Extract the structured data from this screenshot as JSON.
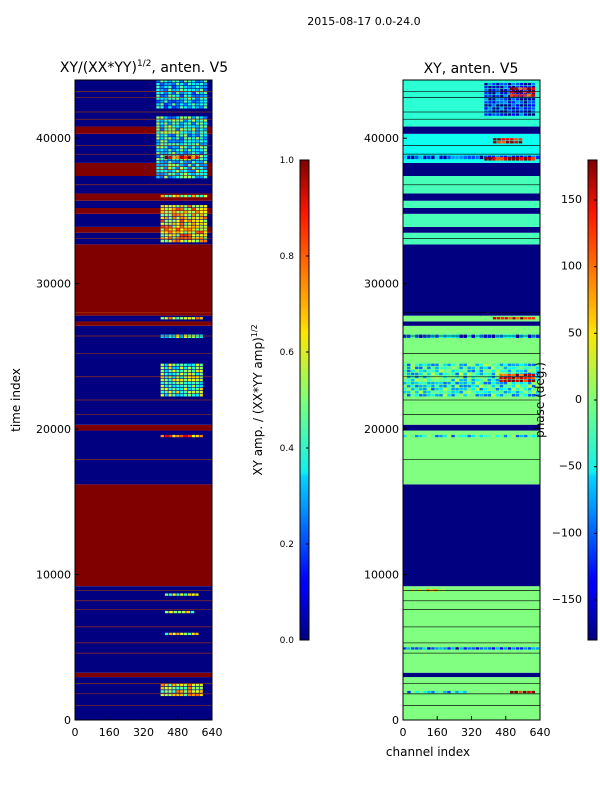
{
  "figure_title": "2015-08-17 0.0-24.0",
  "chart_data": [
    {
      "type": "heatmap",
      "title": "XY/(XX*YY)^{1/2}, anten. V5",
      "title_main": "XY/(XX*YY)",
      "title_sup": "1/2",
      "title_tail": ", anten. V5",
      "xlabel": "",
      "ylabel": "time index",
      "xlim": [
        0,
        640
      ],
      "ylim": [
        0,
        44000
      ],
      "xticks": [
        0,
        160,
        320,
        480,
        640
      ],
      "yticks": [
        0,
        10000,
        20000,
        30000,
        40000
      ],
      "colorbar": {
        "label": "XY amp. / (XX*YY amp)^{1/2}",
        "label_main": "XY amp. / (XX*YY amp)",
        "label_sup": "1/2",
        "range": [
          0.0,
          1.0
        ],
        "ticks": [
          0.0,
          0.2,
          0.4,
          0.6,
          0.8,
          1.0
        ],
        "tick_labels": [
          "0.0",
          "0.2",
          "0.4",
          "0.6",
          "0.8",
          "1.0"
        ]
      },
      "bands": [
        {
          "from": 0,
          "to": 2950,
          "value": 0.0
        },
        {
          "from": 2950,
          "to": 3250,
          "value": 1.0
        },
        {
          "from": 3250,
          "to": 9200,
          "value": 0.0
        },
        {
          "from": 9200,
          "to": 16200,
          "value": 1.0
        },
        {
          "from": 16200,
          "to": 19900,
          "value": 0.0
        },
        {
          "from": 19900,
          "to": 20300,
          "value": 1.0
        },
        {
          "from": 20300,
          "to": 27100,
          "value": 0.0
        },
        {
          "from": 27100,
          "to": 27400,
          "value": 1.0
        },
        {
          "from": 27400,
          "to": 27800,
          "value": 0.0
        },
        {
          "from": 27800,
          "to": 32700,
          "value": 1.0
        },
        {
          "from": 32700,
          "to": 33500,
          "value": 0.0
        },
        {
          "from": 33500,
          "to": 33900,
          "value": 1.0
        },
        {
          "from": 33900,
          "to": 34800,
          "value": 0.0
        },
        {
          "from": 34800,
          "to": 35200,
          "value": 1.0
        },
        {
          "from": 35200,
          "to": 35700,
          "value": 0.0
        },
        {
          "from": 35700,
          "to": 36200,
          "value": 1.0
        },
        {
          "from": 36200,
          "to": 37400,
          "value": 0.0
        },
        {
          "from": 37400,
          "to": 38300,
          "value": 1.0
        },
        {
          "from": 38300,
          "to": 40300,
          "value": 0.0
        },
        {
          "from": 40300,
          "to": 40800,
          "value": 1.0
        },
        {
          "from": 40800,
          "to": 44000,
          "value": 0.0
        }
      ],
      "lines": [
        1000,
        1800,
        2500,
        4600,
        5300,
        6400,
        7600,
        8200,
        8900,
        17900,
        21000,
        22000,
        23600,
        25200,
        26400,
        28000,
        33100,
        36800,
        38900,
        39500,
        41300,
        41800,
        42800,
        43200
      ],
      "patches": [
        {
          "x": [
            400,
            600
          ],
          "y": [
            1600,
            2500
          ],
          "value": 0.6
        },
        {
          "x": [
            420,
            580
          ],
          "y": [
            5800,
            6000
          ],
          "value": 0.55
        },
        {
          "x": [
            420,
            560
          ],
          "y": [
            7300,
            7500
          ],
          "value": 0.5
        },
        {
          "x": [
            420,
            580
          ],
          "y": [
            8500,
            8700
          ],
          "value": 0.55
        },
        {
          "x": [
            400,
            600
          ],
          "y": [
            19400,
            19600
          ],
          "value": 0.75
        },
        {
          "x": [
            400,
            600
          ],
          "y": [
            22200,
            24500
          ],
          "value": 0.5
        },
        {
          "x": [
            400,
            600
          ],
          "y": [
            26200,
            26500
          ],
          "value": 0.45
        },
        {
          "x": [
            400,
            600
          ],
          "y": [
            27500,
            27700
          ],
          "value": 0.6
        },
        {
          "x": [
            400,
            620
          ],
          "y": [
            32800,
            35400
          ],
          "value": 0.65
        },
        {
          "x": [
            400,
            620
          ],
          "y": [
            35900,
            36100
          ],
          "value": 0.55
        },
        {
          "x": [
            380,
            620
          ],
          "y": [
            37200,
            41500
          ],
          "value": 0.4
        },
        {
          "x": [
            380,
            620
          ],
          "y": [
            42000,
            44000
          ],
          "value": 0.35
        },
        {
          "x": [
            420,
            580
          ],
          "y": [
            38500,
            38800
          ],
          "value": 0.85
        }
      ]
    },
    {
      "type": "heatmap",
      "title": "XY, anten. V5",
      "xlabel": "channel index",
      "ylabel": "",
      "xlim": [
        0,
        640
      ],
      "ylim": [
        0,
        44000
      ],
      "xticks": [
        0,
        160,
        320,
        480,
        640
      ],
      "yticks": [
        0,
        10000,
        20000,
        30000,
        40000
      ],
      "colorbar": {
        "label": "phase (deg.)",
        "range": [
          -180,
          180
        ],
        "ticks": [
          -150,
          -100,
          -50,
          0,
          50,
          100,
          150
        ],
        "tick_labels": [
          "−150",
          "−100",
          "−50",
          "0",
          "50",
          "100",
          "150"
        ]
      },
      "bands": [
        {
          "from": 0,
          "to": 2950,
          "value": 0
        },
        {
          "from": 2950,
          "to": 3250,
          "value": -180
        },
        {
          "from": 3250,
          "to": 9200,
          "value": 0
        },
        {
          "from": 9200,
          "to": 16200,
          "value": -180
        },
        {
          "from": 16200,
          "to": 19900,
          "value": 0
        },
        {
          "from": 19900,
          "to": 20300,
          "value": -180
        },
        {
          "from": 20300,
          "to": 27100,
          "value": 0
        },
        {
          "from": 27100,
          "to": 27400,
          "value": -180
        },
        {
          "from": 27400,
          "to": 27800,
          "value": 0
        },
        {
          "from": 27800,
          "to": 32700,
          "value": -180
        },
        {
          "from": 32700,
          "to": 33500,
          "value": -20
        },
        {
          "from": 33500,
          "to": 33900,
          "value": -180
        },
        {
          "from": 33900,
          "to": 34800,
          "value": -20
        },
        {
          "from": 34800,
          "to": 35200,
          "value": -180
        },
        {
          "from": 35200,
          "to": 35700,
          "value": -20
        },
        {
          "from": 35700,
          "to": 36200,
          "value": -180
        },
        {
          "from": 36200,
          "to": 37400,
          "value": -20
        },
        {
          "from": 37400,
          "to": 38300,
          "value": -180
        },
        {
          "from": 38300,
          "to": 40300,
          "value": -40
        },
        {
          "from": 40300,
          "to": 40800,
          "value": -180
        },
        {
          "from": 40800,
          "to": 44000,
          "value": -30
        }
      ],
      "lines": [
        1000,
        1800,
        2500,
        4600,
        5300,
        6400,
        7600,
        8200,
        8900,
        17900,
        21000,
        22000,
        23600,
        25200,
        26400,
        28000,
        33100,
        36800,
        38900,
        39500,
        41300,
        41800,
        42800,
        43200
      ],
      "patches": [
        {
          "x": [
            500,
            620
          ],
          "y": [
            1800,
            2000
          ],
          "value": 160
        },
        {
          "x": [
            20,
            300
          ],
          "y": [
            1800,
            2000
          ],
          "value": -60
        },
        {
          "x": [
            0,
            640
          ],
          "y": [
            4800,
            5000
          ],
          "value": -120
        },
        {
          "x": [
            0,
            200
          ],
          "y": [
            8800,
            9000
          ],
          "value": 40
        },
        {
          "x": [
            0,
            640
          ],
          "y": [
            19400,
            19600
          ],
          "value": -50
        },
        {
          "x": [
            0,
            640
          ],
          "y": [
            22200,
            24500
          ],
          "value": -40
        },
        {
          "x": [
            450,
            620
          ],
          "y": [
            23200,
            23800
          ],
          "value": 140
        },
        {
          "x": [
            0,
            640
          ],
          "y": [
            26200,
            26500
          ],
          "value": -90
        },
        {
          "x": [
            420,
            620
          ],
          "y": [
            27500,
            27700
          ],
          "value": 150
        },
        {
          "x": [
            0,
            640
          ],
          "y": [
            38500,
            38800
          ],
          "value": -120
        },
        {
          "x": [
            380,
            620
          ],
          "y": [
            38400,
            38700
          ],
          "value": 170
        },
        {
          "x": [
            380,
            620
          ],
          "y": [
            41500,
            43800
          ],
          "value": -140
        },
        {
          "x": [
            500,
            620
          ],
          "y": [
            42800,
            43500
          ],
          "value": 150
        },
        {
          "x": [
            420,
            560
          ],
          "y": [
            39600,
            40000
          ],
          "value": 160
        }
      ]
    }
  ]
}
